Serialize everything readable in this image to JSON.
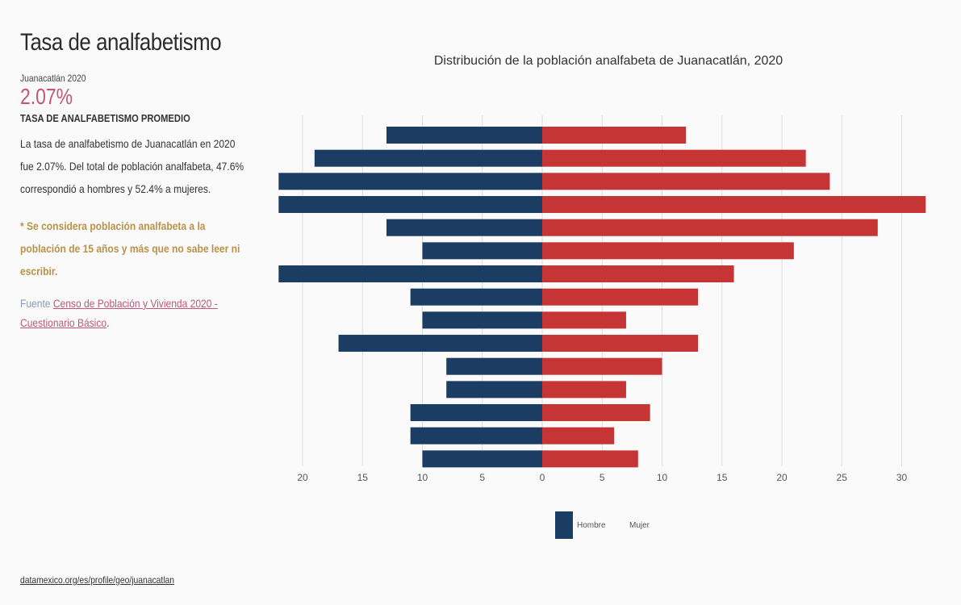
{
  "left_panel": {
    "title": "Tasa de analfabetismo",
    "location_year": "Juanacatlán 2020",
    "stat_value": "2.07%",
    "stat_label": "TASA DE ANALFABETISMO PROMEDIO",
    "description": "La tasa de analfabetismo de Juanacatlán en 2020 fue 2.07%. Del total de población analfabeta, 47.6% correspondió a hombres y 52.4% a mujeres.",
    "note": "* Se considera población analfabeta a la población de 15 años y más que no sabe leer ni escribir.",
    "source_label": "Fuente",
    "source_link_text": "Censo de Población y Vivienda 2020 - Cuestionario Básico",
    "source_end": "."
  },
  "footer": {
    "link_text": "datamexico.org/es/profile/geo/juanacatlan"
  },
  "colors": {
    "hombre": "#1c3d63",
    "mujer": "#c53535",
    "grid": "#dddddd"
  },
  "chart_data": {
    "type": "bar",
    "orientation": "horizontal-diverging",
    "title": "Distribución de la población analfabeta de Juanacatlán, 2020",
    "xlabel": "",
    "ylabel": "",
    "xlim": [
      -22,
      32
    ],
    "x_ticks": [
      -20,
      -15,
      -10,
      -5,
      0,
      5,
      10,
      15,
      20,
      25,
      30
    ],
    "grid": true,
    "legend": "bottom-center",
    "series": [
      {
        "name": "Hombre",
        "values": [
          13,
          19,
          22,
          22,
          13,
          10,
          22,
          11,
          10,
          17,
          8,
          8,
          11,
          11,
          10
        ]
      },
      {
        "name": "Mujer",
        "values": [
          12,
          22,
          24,
          32,
          28,
          21,
          16,
          13,
          7,
          13,
          10,
          7,
          9,
          6,
          8
        ]
      }
    ]
  }
}
